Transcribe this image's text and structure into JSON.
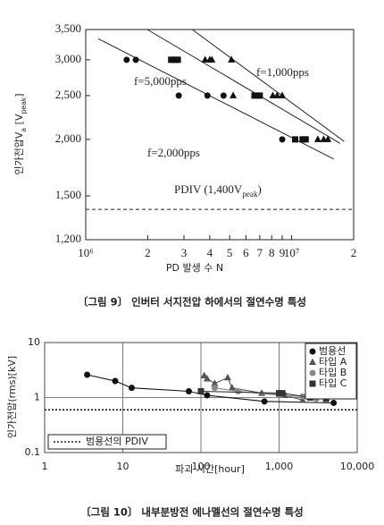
{
  "chart_data": [
    {
      "type": "scatter",
      "log_x": true,
      "log_y": true,
      "x_label": "PD 발생 수 N",
      "y_label": [
        {
          "text": "인가전압V"
        },
        {
          "text": "a",
          "sub": true
        },
        {
          "text": " [V"
        },
        {
          "text": "peak",
          "sub": true
        },
        {
          "text": "]"
        }
      ],
      "caption": "〔그림 9〕 인버터 서지전압 하에서의 절연수명 특성",
      "xlim": [
        1000000,
        20000000
      ],
      "ylim": [
        1200,
        3500
      ],
      "xticks": [
        {
          "value": 1000000,
          "label": "10⁶"
        },
        {
          "value": 2000000,
          "label": "2"
        },
        {
          "value": 3000000,
          "label": "3"
        },
        {
          "value": 4000000,
          "label": "4"
        },
        {
          "value": 5000000,
          "label": "5"
        },
        {
          "value": 6000000,
          "label": "6"
        },
        {
          "value": 7000000,
          "label": "7"
        },
        {
          "value": 8000000,
          "label": "8"
        },
        {
          "value": 9000000,
          "label": "9"
        },
        {
          "value": 10000000,
          "label": "10⁷"
        },
        {
          "value": 20000000,
          "label": "2"
        }
      ],
      "yticks": [
        {
          "value": 1200,
          "label": "1,200"
        },
        {
          "value": 1500,
          "label": "1,500"
        },
        {
          "value": 2000,
          "label": "2,000"
        },
        {
          "value": 2500,
          "label": "2,500"
        },
        {
          "value": 3000,
          "label": "3,000"
        },
        {
          "value": 3500,
          "label": "3,500"
        }
      ],
      "series": [
        {
          "marker": "circle",
          "color": "#111111",
          "x": [
            1580000,
            1750000,
            2830000,
            3900000,
            4670000,
            9000000
          ],
          "values": [
            3000,
            3000,
            2500,
            2500,
            2500,
            2000
          ]
        },
        {
          "marker": "square",
          "color": "#111111",
          "x": [
            2600000,
            2700000,
            2800000,
            6600000,
            7000000,
            10400000,
            11300000,
            11700000
          ],
          "values": [
            3000,
            3000,
            3000,
            2500,
            2500,
            2000,
            2000,
            2000
          ]
        },
        {
          "marker": "triangle",
          "color": "#111111",
          "x": [
            3800000,
            4000000,
            4100000,
            5100000,
            5200000,
            8100000,
            8500000,
            9000000,
            13400000,
            14300000,
            15000000
          ],
          "values": [
            3000,
            3000,
            3000,
            3000,
            2500,
            2500,
            2500,
            2500,
            2000,
            2000,
            2000
          ]
        }
      ],
      "fit_lines": [
        {
          "label": "f=5,000pps",
          "x": [
            1150000,
            16000000
          ],
          "values": [
            3340,
            1810
          ]
        },
        {
          "label": "f=2,000pps",
          "x": [
            1990000,
            17200000
          ],
          "values": [
            3500,
            1960
          ]
        },
        {
          "label": "f=1,000pps",
          "x": [
            3290000,
            18000000
          ],
          "values": [
            3500,
            1980
          ]
        }
      ],
      "reference": {
        "value": 1400,
        "style": "dashed",
        "label": [
          {
            "text": "PDIV (1,400V"
          },
          {
            "text": "peak",
            "sub": true
          },
          {
            "text": ")"
          }
        ]
      }
    },
    {
      "type": "scatter",
      "log_x": true,
      "log_y": true,
      "x_label": "파괴 시간[hour]",
      "y_label": [
        {
          "text": "인가전압(rms)[kV]"
        }
      ],
      "caption": "〔그림 10〕 내부분방전 에나멜선의 절연수명 특성",
      "xlim": [
        1,
        10000
      ],
      "ylim": [
        0.1,
        10
      ],
      "xticks": [
        1,
        10,
        100,
        {
          "value": 1000,
          "label": "1,000"
        },
        {
          "value": 10000,
          "label": "10,000"
        }
      ],
      "yticks": [
        0.1,
        1,
        10
      ],
      "grid": true,
      "legend": "upper right",
      "series": [
        {
          "name": "범용선",
          "marker": "circle",
          "color": "#111111",
          "fit_line": true,
          "x": [
            3.5,
            8,
            13,
            70,
            120,
            650,
            5000
          ],
          "values": [
            2.6,
            2.0,
            1.5,
            1.3,
            1.1,
            0.85,
            0.8
          ]
        },
        {
          "name": "타입 A",
          "marker": "triangle",
          "color": "#555555",
          "fit_line": true,
          "x": [
            110,
            120,
            150,
            220,
            250,
            600,
            1200,
            2000
          ],
          "values": [
            2.5,
            2.2,
            1.8,
            2.3,
            1.5,
            1.2,
            1.1,
            0.9
          ]
        },
        {
          "name": "타입 B",
          "marker": "circle",
          "color": "#888888",
          "fit_line": true,
          "x": [
            150,
            300,
            1000,
            2000,
            3000
          ],
          "values": [
            1.5,
            1.3,
            1.1,
            1.05,
            0.95
          ]
        },
        {
          "name": "타입 C",
          "marker": "square",
          "color": "#333333",
          "fit_line": true,
          "x": [
            100,
            1000,
            1100,
            2500,
            4000
          ],
          "values": [
            1.3,
            1.2,
            1.2,
            1.0,
            0.95
          ]
        }
      ],
      "reference": {
        "value": 0.6,
        "style": "dotted",
        "name": "범용선의 PDIV"
      }
    }
  ]
}
